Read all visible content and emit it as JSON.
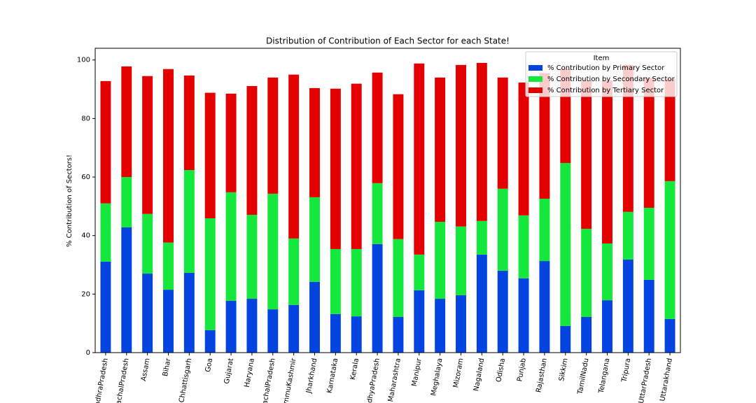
{
  "chart_data": {
    "type": "stacked_bar",
    "title": "Distribution of Contribution of Each Sector for each State!",
    "y_label": "% Contribution of Sectors!",
    "legend_title": "Item",
    "legend_position": "upper right",
    "categories": [
      "AndhraPradesh",
      "ArunachalPradesh",
      "Assam",
      "Bihar",
      "Chhattisgarh",
      "Goa",
      "Gujarat",
      "Haryana",
      "HimachalPradesh",
      "JammuKashmir",
      "Jharkhand",
      "Karnataka",
      "Kerala",
      "MadhyaPradesh",
      "Maharashtra",
      "Manipur",
      "Meghalaya",
      "Mizoram",
      "Nagaland",
      "Odisha",
      "Punjab",
      "Rajasthan",
      "Sikkim",
      "TamilNadu",
      "Telangana",
      "Tripura",
      "UttarPradesh",
      "Uttarakhand"
    ],
    "series": [
      {
        "name": "% Contribution by Primary Sector",
        "color": "#0343df",
        "values": [
          31.1,
          42.8,
          27.0,
          21.5,
          27.3,
          7.7,
          17.7,
          18.4,
          14.8,
          16.3,
          24.2,
          13.2,
          12.4,
          37.1,
          12.2,
          21.3,
          18.4,
          19.6,
          33.5,
          28.0,
          25.4,
          31.3,
          9.1,
          12.2,
          17.9,
          31.8,
          24.9,
          11.5
        ]
      },
      {
        "name": "% Contribution by Secondary Sector",
        "color": "#15e83c",
        "values": [
          19.9,
          17.2,
          20.4,
          16.1,
          35.1,
          38.2,
          37.1,
          28.7,
          39.5,
          22.7,
          28.9,
          22.2,
          23.0,
          20.8,
          26.6,
          12.2,
          26.3,
          23.5,
          11.5,
          28.0,
          21.5,
          21.3,
          55.7,
          30.1,
          19.4,
          16.3,
          24.6,
          47.1
        ]
      },
      {
        "name": "% Contribution by Tertiary Sector",
        "color": "#e50000",
        "values": [
          41.8,
          37.8,
          47.1,
          59.3,
          32.3,
          42.9,
          33.7,
          44.0,
          39.7,
          56.0,
          37.3,
          54.8,
          56.5,
          37.8,
          49.5,
          65.3,
          49.3,
          55.2,
          54.0,
          38.0,
          45.4,
          42.9,
          32.2,
          50.7,
          55.7,
          50.2,
          44.5,
          34.9
        ]
      }
    ],
    "ylim": [
      0,
      104
    ],
    "yticks": [
      0,
      20,
      40,
      60,
      80,
      100
    ],
    "grid": false
  }
}
